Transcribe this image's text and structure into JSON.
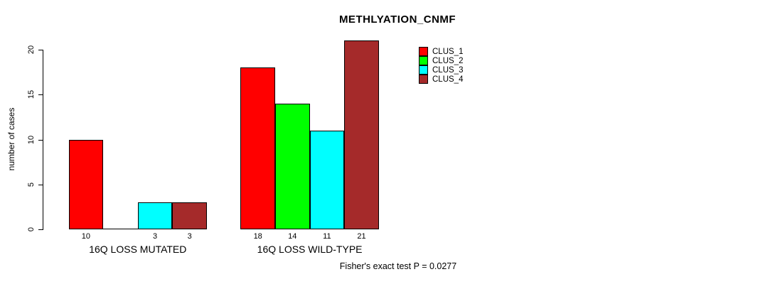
{
  "chart_data": {
    "type": "bar",
    "title": "METHLYATION_CNMF",
    "ylabel": "number of cases",
    "xlabel": "",
    "ylim": [
      0,
      21
    ],
    "yticks": [
      0,
      5,
      10,
      15,
      20
    ],
    "grid": false,
    "legend_position": "top-right",
    "categories": [
      "16Q LOSS MUTATED",
      "16Q LOSS WILD-TYPE"
    ],
    "series": [
      {
        "name": "CLUS_1",
        "color": "#FF0000",
        "values": [
          10,
          18
        ]
      },
      {
        "name": "CLUS_2",
        "color": "#00FF00",
        "values": [
          0,
          14
        ]
      },
      {
        "name": "CLUS_3",
        "color": "#00FFFF",
        "values": [
          3,
          11
        ]
      },
      {
        "name": "CLUS_4",
        "color": "#A52A2A",
        "values": [
          3,
          21
        ]
      }
    ],
    "bar_labels": [
      [
        "10",
        "",
        "3",
        "3"
      ],
      [
        "18",
        "14",
        "11",
        "21"
      ]
    ],
    "footer": "Fisher's exact test P = 0.0277"
  }
}
